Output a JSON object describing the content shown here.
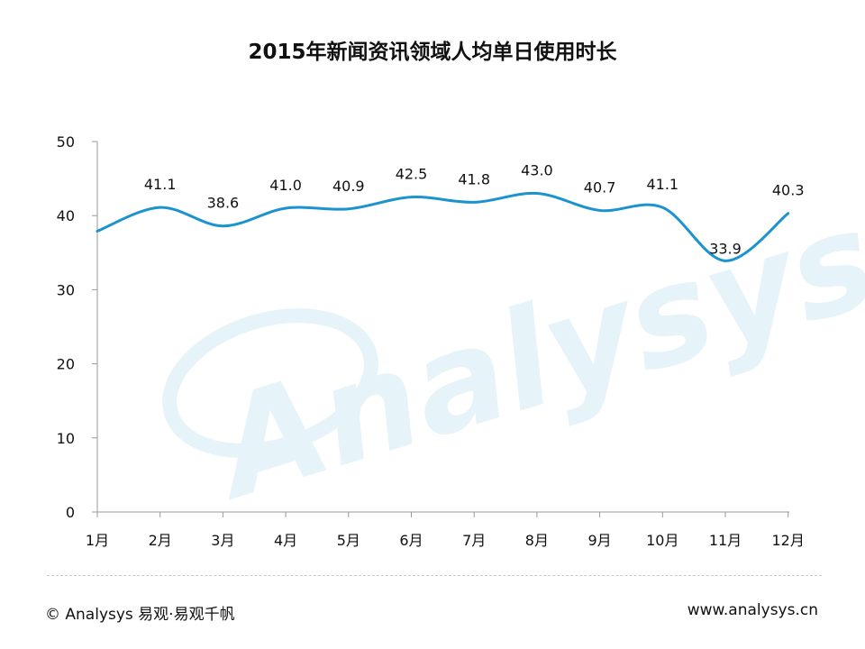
{
  "title": "2015年新闻资讯领域人均单日使用时长",
  "colors": {
    "line": "#1b93cf",
    "axis": "#9a9a9a",
    "watermark": "#e6f3f8"
  },
  "watermark": "Analysys",
  "footer": {
    "left": "© Analysys 易观·易观千帆",
    "right": "www.analysys.cn"
  },
  "chart_data": {
    "type": "line",
    "title": "2015年新闻资讯领域人均单日使用时长",
    "categories": [
      "1月",
      "2月",
      "3月",
      "4月",
      "5月",
      "6月",
      "7月",
      "8月",
      "9月",
      "10月",
      "11月",
      "12月"
    ],
    "series": [
      {
        "values": [
          37.9,
          41.1,
          38.6,
          41.0,
          40.9,
          42.5,
          41.8,
          43.0,
          40.7,
          41.1,
          33.9,
          40.3
        ]
      }
    ],
    "data_labels": [
      "",
      "41.1",
      "38.6",
      "41.0",
      "40.9",
      "42.5",
      "41.8",
      "43.0",
      "40.7",
      "41.1",
      "33.9",
      "40.3"
    ],
    "ylim": [
      0,
      50
    ],
    "yticks": [
      0,
      10,
      20,
      30,
      40,
      50
    ],
    "grid": false,
    "smooth": true
  }
}
